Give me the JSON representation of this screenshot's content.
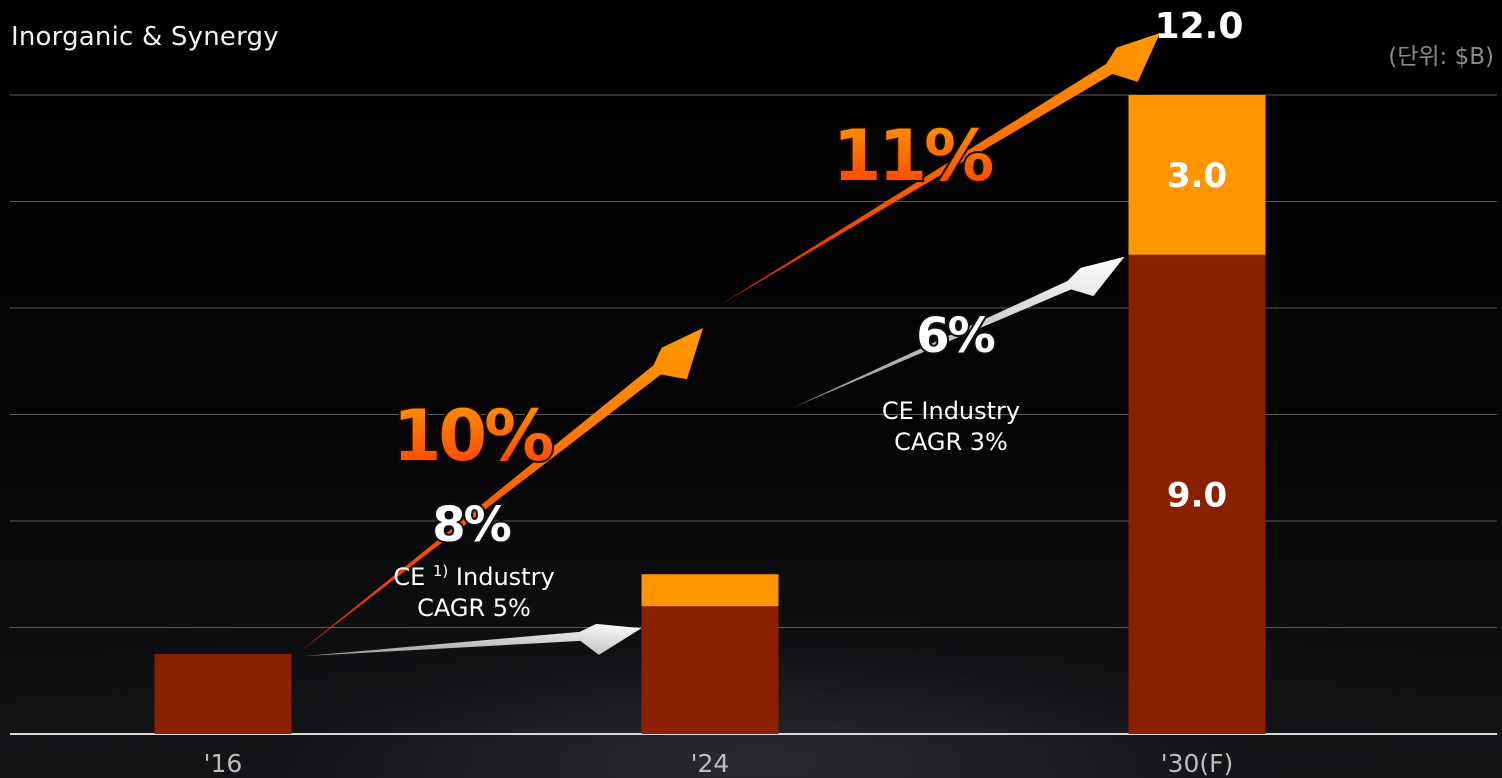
{
  "subtitle": "Inorganic & Synergy",
  "unit": "(단위: $B)",
  "colors": {
    "base": "#8a2000",
    "synergy": "#ff9500",
    "arrow_orange": "#ff8c00",
    "arrow_orange_tail": "#ff3a00",
    "arrow_white": "#ffffff",
    "grid": "#5a5a5a",
    "text": "#ffffff",
    "muted": "#9a9a9a"
  },
  "chart_data": {
    "type": "bar",
    "stacked": true,
    "categories": [
      "'16",
      "'24",
      "'30(F)"
    ],
    "series": [
      {
        "key": "base",
        "values": [
          1.5,
          2.4,
          9.0
        ],
        "value_labels": [
          "",
          "",
          "9.0"
        ]
      },
      {
        "key": "synergy",
        "values": [
          0,
          0.6,
          3.0
        ],
        "value_labels": [
          "",
          "",
          "3.0"
        ]
      }
    ],
    "total_labels": [
      "",
      "",
      "12.0"
    ],
    "ylim": [
      0,
      12
    ],
    "grid": true,
    "annotations": [
      {
        "text": "10%",
        "style": "orange",
        "from": "'16",
        "to": "'24"
      },
      {
        "text": "11%",
        "style": "orange",
        "from": "'24",
        "to": "'30(F)"
      },
      {
        "text": "8%",
        "style": "white",
        "from": "'16",
        "to": "'24",
        "note_line1": "CE",
        "note_superscript": "1)",
        "note_line1_after": "Industry",
        "note_line2": "CAGR 5%"
      },
      {
        "text": "6%",
        "style": "white",
        "from": "'24",
        "to": "'30(F)",
        "note_line1": "CE Industry",
        "note_line2": "CAGR 3%"
      }
    ]
  }
}
